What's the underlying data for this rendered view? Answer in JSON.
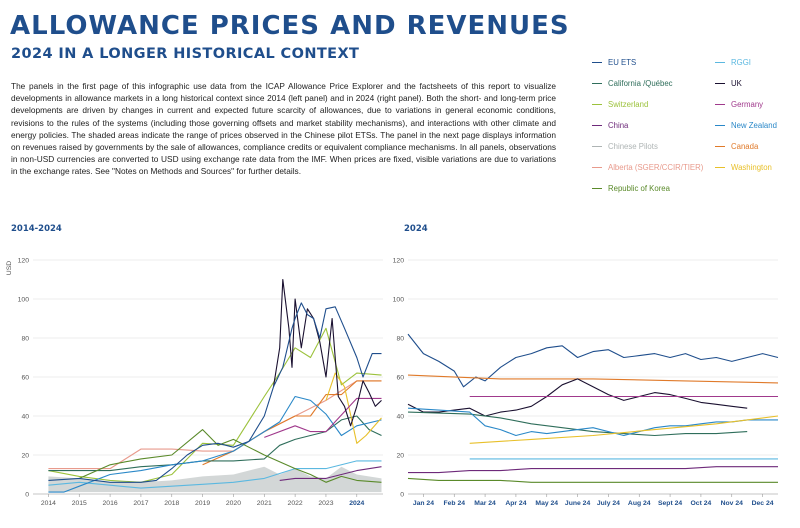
{
  "header": {
    "title": "ALLOWANCE PRICES AND REVENUES",
    "subtitle": "2024 IN A LONGER HISTORICAL CONTEXT"
  },
  "description": "The panels in the first page of this infographic use data from the ICAP Allowance Price Explorer and the factsheets of this report to visualize developments in allowance markets in a long historical context since 2014 (left panel) and in 2024 (right panel). Both the short- and long-term price developments are driven by changes in current and expected future scarcity of allowances, due to variations in general economic conditions, revisions to the rules of the systems (including those governing offsets and market stability mechanisms), and interactions with other climate and energy policies. The shaded areas indicate the range of prices observed in the Chinese pilot ETSs. The panel in the next page displays information on revenues raised by governments by the sale of allowances, compliance credits or equivalent compliance mechanisms. In all panels, observations in non-USD currencies are converted to USD using exchange rate data from the IMF. When prices are fixed, visible variations are due to variations in the exchange rates. See \"Notes on Methods and Sources\" for further details.",
  "legend": [
    {
      "label": "EU ETS",
      "color": "#1f4e8c"
    },
    {
      "label": "RGGI",
      "color": "#5bb8e0"
    },
    {
      "label": "California /Québec",
      "color": "#2f6e5b"
    },
    {
      "label": "UK",
      "color": "#1a1030"
    },
    {
      "label": "Switzerland",
      "color": "#9cc23c"
    },
    {
      "label": "Germany",
      "color": "#a0398c"
    },
    {
      "label": "China",
      "color": "#6e2a7a"
    },
    {
      "label": "New Zealand",
      "color": "#2a88c8"
    },
    {
      "label": "Chinese Pilots",
      "color": "#aeb4b4"
    },
    {
      "label": "Canada",
      "color": "#e07a2a"
    },
    {
      "label": "Alberta (SGER/CCIR/TIER)",
      "color": "#e89a8c"
    },
    {
      "label": "Washington",
      "color": "#e8c02a"
    },
    {
      "label": "Republic of Korea",
      "color": "#5a8a2a"
    }
  ],
  "chart_data": [
    {
      "type": "line",
      "title": "2014-2024",
      "ylabel": "USD",
      "xlabel": "",
      "ylim": [
        0,
        120
      ],
      "xlim": [
        2013.5,
        2024.85
      ],
      "yticks": [
        0,
        20,
        40,
        60,
        80,
        100,
        120
      ],
      "xtick_labels": [
        "2014",
        "2015",
        "2016",
        "2017",
        "2018",
        "2019",
        "2020",
        "2021",
        "2022",
        "2023",
        "2024"
      ],
      "xtick_values": [
        2014,
        2015,
        2016,
        2017,
        2018,
        2019,
        2020,
        2021,
        2022,
        2023,
        2024
      ],
      "highlight_tick": "2024",
      "shaded_band": {
        "name": "Chinese Pilots",
        "x": [
          2014,
          2015,
          2016,
          2017,
          2018,
          2019,
          2020,
          2021,
          2021.5,
          2022,
          2022.5,
          2023,
          2023.5,
          2024,
          2024.8
        ],
        "low": [
          1,
          1,
          1,
          1,
          1,
          1,
          1,
          1,
          1,
          1,
          1,
          1,
          1,
          1,
          1
        ],
        "high": [
          9,
          8,
          6,
          6,
          7,
          9,
          10,
          14,
          10,
          13,
          9,
          8,
          14,
          10,
          8
        ]
      },
      "series": [
        {
          "name": "Switzerland",
          "x": [
            2014,
            2015,
            2016,
            2017,
            2017.5,
            2018,
            2019,
            2020,
            2021,
            2021.5,
            2022,
            2022.5,
            2023,
            2023.5,
            2024,
            2024.8
          ],
          "y": [
            12,
            9,
            7,
            6,
            8,
            10,
            26,
            25,
            50,
            62,
            75,
            70,
            85,
            56,
            62,
            61
          ]
        },
        {
          "name": "Alberta (SGER/CCIR/TIER)",
          "x": [
            2014,
            2015,
            2016,
            2016.5,
            2017,
            2018,
            2019,
            2020,
            2021,
            2022,
            2023,
            2024,
            2024.8
          ],
          "y": [
            13,
            13,
            13,
            18,
            23,
            23,
            22,
            22,
            32,
            40,
            48,
            58,
            58
          ]
        },
        {
          "name": "Canada",
          "x": [
            2014,
            2018.95,
            2019,
            2020,
            2021,
            2022,
            2022.5,
            2023,
            2023.5,
            2024,
            2024.8
          ],
          "y": [
            null,
            null,
            15,
            22,
            32,
            40,
            40,
            51,
            51,
            58,
            58
          ]
        },
        {
          "name": "California /Québec",
          "x": [
            2014,
            2015,
            2016,
            2017,
            2018,
            2019,
            2020,
            2021,
            2021.5,
            2022,
            2022.5,
            2023,
            2023.5,
            2024,
            2024.4,
            2024.8
          ],
          "y": [
            12,
            12,
            12,
            14,
            15,
            17,
            17,
            18,
            25,
            28,
            30,
            32,
            38,
            40,
            33,
            30
          ]
        },
        {
          "name": "RGGI",
          "x": [
            2014,
            2015,
            2016,
            2017,
            2018,
            2019,
            2020,
            2021,
            2022,
            2023,
            2024,
            2024.8
          ],
          "y": [
            4.5,
            6,
            4.5,
            3,
            4,
            5,
            6,
            8,
            13,
            13,
            17,
            17
          ]
        },
        {
          "name": "New Zealand",
          "x": [
            2014,
            2014.5,
            2015,
            2016,
            2017,
            2018,
            2019,
            2020,
            2021,
            2021.5,
            2022,
            2022.5,
            2023,
            2023.5,
            2024,
            2024.8
          ],
          "y": [
            1,
            1,
            4,
            10,
            12,
            15,
            17,
            22,
            32,
            37,
            50,
            48,
            41,
            30,
            35,
            38
          ]
        },
        {
          "name": "Republic of Korea",
          "x": [
            2015,
            2016,
            2017,
            2018,
            2019,
            2019.5,
            2020,
            2021,
            2022,
            2022.5,
            2023,
            2023.5,
            2024,
            2024.8
          ],
          "y": [
            8,
            15,
            18,
            20,
            33,
            25,
            28,
            20,
            13,
            10,
            6,
            9,
            7,
            6
          ]
        },
        {
          "name": "Washington",
          "x": [
            2022.6,
            2023,
            2023.3,
            2023.6,
            2024,
            2024.3,
            2024.8
          ],
          "y": [
            null,
            48,
            62,
            55,
            26,
            30,
            39
          ]
        },
        {
          "name": "Germany",
          "x": [
            2021,
            2022,
            2022.5,
            2023,
            2024,
            2024.8
          ],
          "y": [
            29,
            35,
            32,
            32,
            49,
            49
          ]
        },
        {
          "name": "China",
          "x": [
            2021.5,
            2022,
            2022.5,
            2023,
            2023.5,
            2024,
            2024.8
          ],
          "y": [
            7,
            8,
            8,
            8,
            10,
            12,
            14
          ]
        },
        {
          "name": "UK",
          "x": [
            2021.3,
            2021.5,
            2021.6,
            2021.8,
            2021.9,
            2022,
            2022.2,
            2022.4,
            2022.6,
            2022.8,
            2023,
            2023.2,
            2023.4,
            2023.6,
            2023.8,
            2024,
            2024.2,
            2024.4,
            2024.6,
            2024.8
          ],
          "y": [
            55,
            75,
            110,
            85,
            65,
            100,
            75,
            95,
            90,
            78,
            60,
            90,
            50,
            45,
            35,
            45,
            58,
            52,
            45,
            48
          ]
        },
        {
          "name": "EU ETS",
          "x": [
            2014,
            2015,
            2016,
            2017,
            2017.5,
            2018,
            2018.5,
            2019,
            2019.5,
            2020,
            2020.5,
            2021,
            2021.3,
            2021.6,
            2021.9,
            2022,
            2022.2,
            2022.4,
            2022.6,
            2022.8,
            2023,
            2023.3,
            2023.6,
            2024,
            2024.2,
            2024.5,
            2024.8
          ],
          "y": [
            7,
            8,
            6,
            6,
            7,
            13,
            20,
            25,
            26,
            24,
            27,
            40,
            55,
            65,
            85,
            90,
            98,
            92,
            90,
            80,
            95,
            96,
            85,
            70,
            60,
            72,
            72
          ]
        }
      ]
    },
    {
      "type": "line",
      "title": "2024",
      "ylabel": "",
      "xlabel": "",
      "ylim": [
        0,
        120
      ],
      "xlim": [
        0,
        12
      ],
      "yticks": [
        0,
        20,
        40,
        60,
        80,
        100,
        120
      ],
      "xtick_labels": [
        "Jan 24",
        "Feb 24",
        "Mar 24",
        "Apr 24",
        "May 24",
        "June 24",
        "July 24",
        "Aug 24",
        "Sept 24",
        "Oct 24",
        "Nov 24",
        "Dec 24"
      ],
      "xtick_values": [
        0.5,
        1.5,
        2.5,
        3.5,
        4.5,
        5.5,
        6.5,
        7.5,
        8.5,
        9.5,
        10.5,
        11.5
      ],
      "series": [
        {
          "name": "EU ETS",
          "x": [
            0,
            0.5,
            1,
            1.5,
            1.8,
            2.2,
            2.5,
            3,
            3.5,
            4,
            4.5,
            5,
            5.5,
            6,
            6.5,
            7,
            7.5,
            8,
            8.5,
            9,
            9.5,
            10,
            10.5,
            11,
            11.5,
            12
          ],
          "y": [
            82,
            72,
            68,
            63,
            55,
            60,
            58,
            65,
            70,
            72,
            75,
            76,
            70,
            73,
            74,
            70,
            71,
            72,
            70,
            72,
            69,
            70,
            68,
            70,
            72,
            70
          ]
        },
        {
          "name": "Canada",
          "x": [
            0,
            3,
            6,
            9,
            12
          ],
          "y": [
            61,
            59,
            59,
            58,
            57
          ]
        },
        {
          "name": "UK",
          "x": [
            0,
            0.5,
            1,
            1.5,
            2,
            2.5,
            3,
            3.5,
            4,
            4.5,
            5,
            5.5,
            6,
            6.5,
            7,
            7.5,
            8,
            8.5,
            9,
            9.5,
            10,
            10.5,
            11
          ],
          "y": [
            46,
            42,
            42,
            43,
            44,
            40,
            42,
            43,
            45,
            50,
            56,
            59,
            55,
            51,
            48,
            50,
            52,
            51,
            49,
            47,
            46,
            45,
            44
          ]
        },
        {
          "name": "Germany",
          "x": [
            2,
            12
          ],
          "y": [
            50,
            50
          ]
        },
        {
          "name": "California /Québec",
          "x": [
            0,
            2,
            3,
            4,
            5,
            6,
            7,
            8,
            9,
            10,
            11
          ],
          "y": [
            42,
            41,
            39,
            36,
            34,
            32,
            31,
            30,
            31,
            31,
            32
          ]
        },
        {
          "name": "New Zealand",
          "x": [
            0,
            1,
            2,
            2.5,
            3,
            3.5,
            4,
            4.5,
            5,
            5.5,
            6,
            7,
            8,
            8.5,
            9,
            9.5,
            10,
            10.5,
            11,
            11.5,
            12
          ],
          "y": [
            44,
            43,
            42,
            35,
            33,
            30,
            32,
            31,
            32,
            33,
            34,
            30,
            34,
            35,
            35,
            36,
            37,
            37,
            38,
            38,
            38
          ]
        },
        {
          "name": "Washington",
          "x": [
            2,
            4,
            6,
            8,
            10,
            12
          ],
          "y": [
            26,
            28,
            30,
            33,
            36,
            40
          ]
        },
        {
          "name": "RGGI",
          "x": [
            2,
            12
          ],
          "y": [
            18,
            18
          ]
        },
        {
          "name": "China",
          "x": [
            0,
            1,
            2,
            3,
            4,
            5,
            6,
            7,
            8,
            9,
            10,
            11,
            12
          ],
          "y": [
            11,
            11,
            12,
            12,
            13,
            13,
            13,
            13,
            13,
            13,
            14,
            14,
            14
          ]
        },
        {
          "name": "Republic of Korea",
          "x": [
            0,
            1,
            2,
            3,
            4,
            5,
            6,
            7,
            8,
            9,
            10,
            11,
            12
          ],
          "y": [
            8,
            7,
            7,
            7,
            6,
            6,
            6,
            6,
            6,
            6,
            6,
            6,
            6
          ]
        }
      ]
    }
  ]
}
